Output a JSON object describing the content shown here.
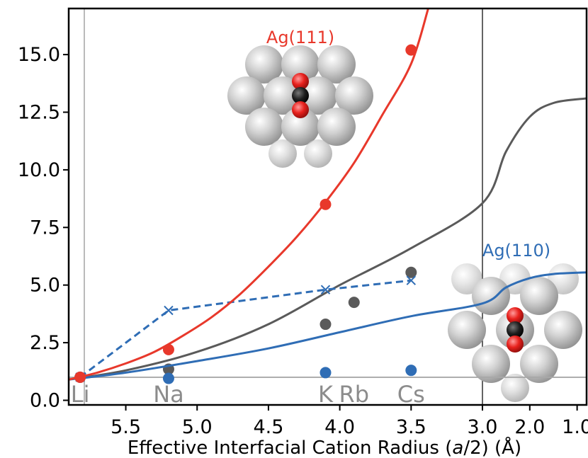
{
  "chart_data": {
    "type": "line",
    "title": "",
    "xlabel_prefix": "Effective Interfacial Cation Radius (",
    "xlabel_italic": "a",
    "xlabel_suffix": "/2) (Å)",
    "ylabel": "",
    "ylim": [
      -0.2,
      17.0
    ],
    "yticks": [
      0.0,
      2.5,
      5.0,
      7.5,
      10.0,
      12.5,
      15.0
    ],
    "ytick_labels": [
      "0.0",
      "2.5",
      "5.0",
      "7.5",
      "10.0",
      "12.5",
      "15.0"
    ],
    "xlim": [
      5.9,
      0.8
    ],
    "xbreak": 3.0,
    "xticks": [
      5.5,
      5.0,
      4.5,
      4.0,
      3.5,
      3.0,
      2.0,
      1.0
    ],
    "xtick_labels": [
      "5.5",
      "5.0",
      "4.5",
      "4.0",
      "3.5",
      "3.0",
      "2.0",
      "1.0"
    ],
    "cations": [
      {
        "label": "Li",
        "x": 5.82
      },
      {
        "label": "Na",
        "x": 5.2
      },
      {
        "label": "K",
        "x": 4.1
      },
      {
        "label": "Rb",
        "x": 3.9
      },
      {
        "label": "Cs",
        "x": 3.5
      }
    ],
    "series": [
      {
        "name": "Ag(111)",
        "color": "#e8382b",
        "points": [
          [
            5.82,
            1.0
          ],
          [
            5.2,
            2.2
          ],
          [
            4.1,
            8.5
          ],
          [
            3.5,
            15.2
          ]
        ],
        "fit": [
          [
            5.9,
            0.9
          ],
          [
            5.7,
            1.2
          ],
          [
            5.5,
            1.6
          ],
          [
            5.3,
            2.1
          ],
          [
            5.1,
            2.8
          ],
          [
            4.9,
            3.6
          ],
          [
            4.7,
            4.6
          ],
          [
            4.5,
            5.8
          ],
          [
            4.3,
            7.1
          ],
          [
            4.1,
            8.6
          ],
          [
            3.9,
            10.3
          ],
          [
            3.7,
            12.4
          ],
          [
            3.5,
            14.6
          ],
          [
            3.38,
            17.0
          ]
        ]
      },
      {
        "name": "Ag(110)",
        "color": "#2f6db5",
        "points": [
          [
            5.82,
            1.0
          ],
          [
            5.2,
            0.95
          ],
          [
            4.1,
            1.2
          ],
          [
            3.5,
            1.3
          ]
        ],
        "crosses": [
          [
            5.82,
            1.0
          ],
          [
            5.2,
            3.9
          ],
          [
            4.1,
            4.8
          ],
          [
            3.5,
            5.2
          ]
        ],
        "fit": [
          [
            5.9,
            0.9
          ],
          [
            5.5,
            1.2
          ],
          [
            5.0,
            1.7
          ],
          [
            4.5,
            2.25
          ],
          [
            4.0,
            2.95
          ],
          [
            3.5,
            3.65
          ],
          [
            3.0,
            4.2
          ],
          [
            2.5,
            4.9
          ],
          [
            2.0,
            5.3
          ],
          [
            1.5,
            5.48
          ],
          [
            0.8,
            5.55
          ]
        ]
      },
      {
        "name": "",
        "color": "#5a5a5a",
        "points": [
          [
            5.2,
            1.35
          ],
          [
            4.1,
            3.3
          ],
          [
            3.9,
            4.25
          ],
          [
            3.5,
            5.55
          ]
        ],
        "fit": [
          [
            5.9,
            0.9
          ],
          [
            5.5,
            1.3
          ],
          [
            5.0,
            2.1
          ],
          [
            4.5,
            3.3
          ],
          [
            4.0,
            5.0
          ],
          [
            3.5,
            6.6
          ],
          [
            3.0,
            8.55
          ],
          [
            2.5,
            10.8
          ],
          [
            2.0,
            12.3
          ],
          [
            1.5,
            12.9
          ],
          [
            0.8,
            13.1
          ]
        ]
      }
    ],
    "reference_line_y": 1.0,
    "inset_labels": {
      "ag111": "Ag(111)",
      "ag110": "Ag(110)"
    }
  }
}
